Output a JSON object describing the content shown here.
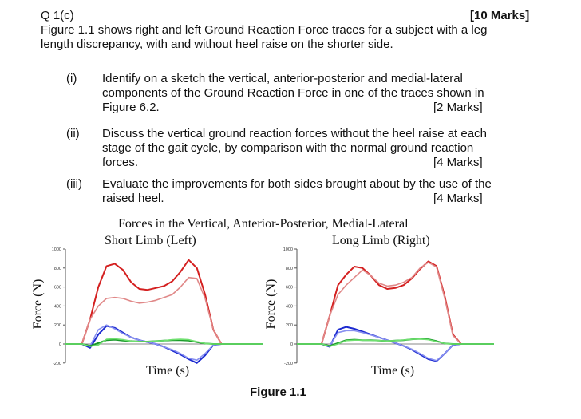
{
  "question": {
    "id": "Q 1(c)",
    "marks": "[10 Marks]",
    "intro": [
      "Figure 1.1 shows right and left Ground Reaction Force traces for a subject with a leg",
      "length discrepancy, with and without heel raise on the shorter side."
    ],
    "parts": [
      {
        "num": "(i)",
        "lines": [
          "Identify on a sketch the vertical, anterior-posterior and medial-lateral",
          "components of the Ground Reaction Force in one of the traces shown in",
          "Figure 6.2."
        ],
        "marks": "[2 Marks]"
      },
      {
        "num": "(ii)",
        "lines": [
          "Discuss the vertical ground reaction forces without the heel raise at each",
          "stage of the gait cycle, by comparison with the normal ground reaction",
          "forces."
        ],
        "marks": "[4 Marks]"
      },
      {
        "num": "(iii)",
        "lines": [
          "Evaluate the improvements for both sides brought about by the use of the",
          "raised heel."
        ],
        "marks": "[4 Marks]"
      }
    ]
  },
  "figure": {
    "title": "Forces in the Vertical, Anterior-Posterior, Medial-Lateral",
    "caption": "Figure 1.1"
  },
  "chart_data": [
    {
      "type": "line",
      "title": "Short Limb (Left)",
      "xlabel": "Time (s)",
      "ylabel": "Force (N)",
      "ylim": [
        -200,
        1000
      ],
      "yticks": [
        "1000",
        "800",
        "600",
        "400",
        "200",
        "0",
        "-200"
      ],
      "grid": false,
      "series": [
        {
          "color": "#d42020",
          "values": [
            0,
            0,
            0,
            260,
            600,
            820,
            845,
            780,
            650,
            580,
            570,
            590,
            610,
            660,
            760,
            885,
            800,
            520,
            150,
            0,
            0,
            0,
            0,
            0,
            0
          ]
        },
        {
          "color": "#e08888",
          "values": [
            0,
            0,
            0,
            260,
            400,
            480,
            490,
            480,
            450,
            430,
            440,
            460,
            490,
            520,
            600,
            700,
            690,
            480,
            150,
            0,
            0,
            0,
            0,
            0,
            0
          ]
        },
        {
          "color": "#1c2ad0",
          "values": [
            0,
            0,
            0,
            -40,
            100,
            190,
            170,
            120,
            70,
            40,
            20,
            0,
            -30,
            -70,
            -110,
            -160,
            -200,
            -120,
            -10,
            0,
            0,
            0,
            0,
            0,
            0
          ]
        },
        {
          "color": "#8890f0",
          "values": [
            0,
            0,
            0,
            -20,
            150,
            200,
            160,
            110,
            70,
            40,
            20,
            0,
            -30,
            -60,
            -100,
            -150,
            -170,
            -100,
            -10,
            0,
            0,
            0,
            0,
            0,
            0
          ]
        },
        {
          "color": "#1a9a2a",
          "values": [
            0,
            0,
            0,
            -20,
            10,
            40,
            45,
            35,
            30,
            25,
            25,
            30,
            35,
            40,
            40,
            35,
            20,
            5,
            0,
            0,
            0,
            0,
            0,
            0,
            0
          ]
        },
        {
          "color": "#70e070",
          "values": [
            0,
            0,
            0,
            -25,
            -10,
            50,
            55,
            45,
            30,
            25,
            25,
            30,
            35,
            45,
            50,
            45,
            25,
            5,
            0,
            0,
            0,
            0,
            0,
            0,
            0
          ]
        }
      ]
    },
    {
      "type": "line",
      "title": "Long Limb (Right)",
      "xlabel": "Time (s)",
      "ylabel": "Force (N)",
      "ylim": [
        -200,
        1000
      ],
      "yticks": [
        "1000",
        "800",
        "600",
        "400",
        "200",
        "0",
        "-200"
      ],
      "grid": false,
      "series": [
        {
          "color": "#d42020",
          "values": [
            0,
            0,
            0,
            0,
            300,
            620,
            730,
            815,
            800,
            720,
            620,
            580,
            590,
            620,
            690,
            790,
            870,
            820,
            500,
            100,
            0,
            0,
            0,
            0,
            0
          ]
        },
        {
          "color": "#e08888",
          "values": [
            0,
            0,
            0,
            0,
            300,
            520,
            620,
            700,
            780,
            720,
            640,
            610,
            620,
            650,
            700,
            800,
            860,
            810,
            480,
            90,
            0,
            0,
            0,
            0,
            0
          ]
        },
        {
          "color": "#1c2ad0",
          "values": [
            0,
            0,
            0,
            0,
            -30,
            150,
            180,
            160,
            130,
            100,
            70,
            40,
            10,
            -20,
            -60,
            -110,
            -160,
            -180,
            -100,
            -10,
            0,
            0,
            0,
            0,
            0
          ]
        },
        {
          "color": "#8890f0",
          "values": [
            0,
            0,
            0,
            0,
            -20,
            120,
            140,
            140,
            120,
            95,
            70,
            40,
            10,
            -20,
            -55,
            -100,
            -150,
            -175,
            -100,
            -10,
            0,
            0,
            0,
            0,
            0
          ]
        },
        {
          "color": "#1a9a2a",
          "values": [
            0,
            0,
            0,
            0,
            -20,
            10,
            40,
            45,
            40,
            40,
            35,
            30,
            35,
            40,
            50,
            55,
            50,
            30,
            5,
            0,
            0,
            0,
            0,
            0,
            0
          ]
        },
        {
          "color": "#70e070",
          "values": [
            0,
            0,
            0,
            0,
            -25,
            0,
            35,
            40,
            40,
            38,
            35,
            32,
            35,
            42,
            50,
            52,
            45,
            25,
            5,
            0,
            0,
            0,
            0,
            0,
            0
          ]
        }
      ]
    }
  ]
}
